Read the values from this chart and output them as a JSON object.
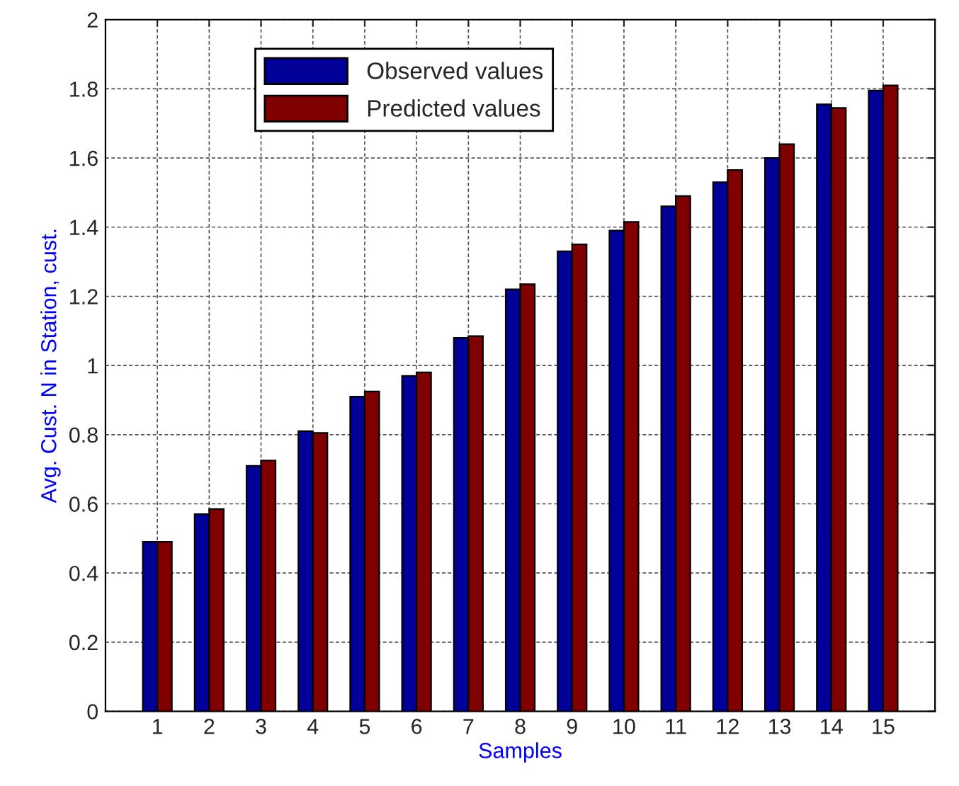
{
  "chart_data": {
    "type": "bar",
    "xlabel": "Samples",
    "ylabel": "Avg. Cust. N in Station, cust.",
    "categories": [
      "1",
      "2",
      "3",
      "4",
      "5",
      "6",
      "7",
      "8",
      "9",
      "10",
      "11",
      "12",
      "13",
      "14",
      "15"
    ],
    "series": [
      {
        "name": "Observed values",
        "color": "#000099",
        "values": [
          0.49,
          0.57,
          0.71,
          0.81,
          0.91,
          0.97,
          1.08,
          1.22,
          1.33,
          1.39,
          1.46,
          1.53,
          1.6,
          1.755,
          1.795
        ]
      },
      {
        "name": "Predicted values",
        "color": "#800000",
        "values": [
          0.49,
          0.585,
          0.725,
          0.805,
          0.925,
          0.98,
          1.085,
          1.235,
          1.35,
          1.415,
          1.49,
          1.565,
          1.64,
          1.745,
          1.81
        ]
      }
    ],
    "ylim": [
      0,
      2
    ],
    "yticks": [
      0,
      0.2,
      0.4,
      0.6,
      0.8,
      1,
      1.2,
      1.4,
      1.6,
      1.8,
      2
    ],
    "grid": true,
    "legend": "top"
  }
}
